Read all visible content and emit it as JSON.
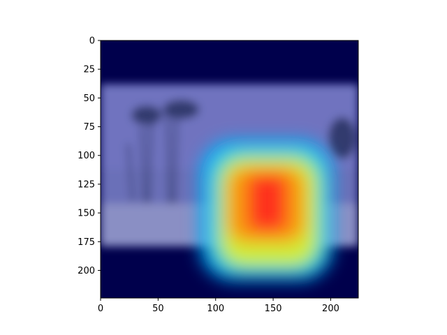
{
  "figure": {
    "background": "#ffffff"
  },
  "chart_data": {
    "type": "heatmap",
    "description": "",
    "x": {
      "lim": [
        0,
        224
      ],
      "ticks": [
        0,
        50,
        100,
        150,
        200
      ],
      "tick_labels": [
        "0",
        "50",
        "100",
        "150",
        "200"
      ]
    },
    "y": {
      "lim": [
        224,
        0
      ],
      "ticks": [
        0,
        25,
        50,
        75,
        100,
        125,
        150,
        175,
        200
      ],
      "tick_labels": [
        "0",
        "25",
        "50",
        "75",
        "100",
        "125",
        "150",
        "175",
        "200"
      ]
    },
    "grid": false,
    "colormap": "jet",
    "colors": {
      "padding": "#00004c",
      "photo_overlay": "#6b70b8",
      "sky": "#6f73bf",
      "ground": "#8a8fc4",
      "trees": "#333a6e"
    },
    "photo_band_y": [
      38,
      179
    ],
    "heat_regions": [
      {
        "level": "low",
        "x": [
          86,
          202
        ],
        "y": [
          86,
          209
        ],
        "color": "#00b0ff"
      },
      {
        "level": "medium-low",
        "x": [
          96,
          196
        ],
        "y": [
          94,
          203
        ],
        "color": "#19e0c0"
      },
      {
        "level": "medium",
        "x": [
          104,
          188
        ],
        "y": [
          102,
          196
        ],
        "color": "#f0f020"
      },
      {
        "level": "high",
        "x": [
          110,
          178
        ],
        "y": [
          110,
          176
        ],
        "color": "#ff8c00"
      },
      {
        "level": "peak",
        "x": [
          128,
          162
        ],
        "y": [
          116,
          166
        ],
        "color": "#ff2020"
      }
    ]
  }
}
